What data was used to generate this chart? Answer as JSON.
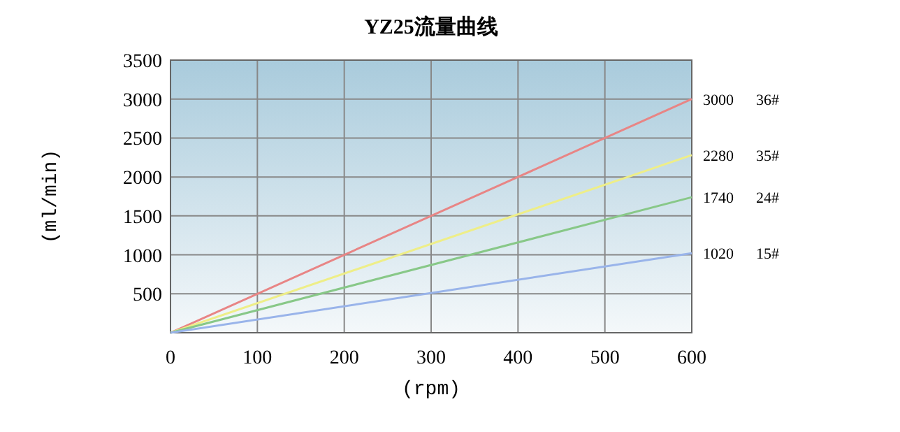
{
  "chart_data": {
    "type": "line",
    "title": "YZ25流量曲线",
    "xlabel": "(rpm)",
    "ylabel": "(ml/min)",
    "x": [
      0,
      600
    ],
    "series": [
      {
        "name": "36#",
        "color": "#e88585",
        "values": [
          0,
          3000
        ],
        "value_labels": [
          null,
          "3000"
        ]
      },
      {
        "name": "35#",
        "color": "#eeee88",
        "values": [
          0,
          2280
        ],
        "value_labels": [
          null,
          "2280"
        ]
      },
      {
        "name": "24#",
        "color": "#88c888",
        "values": [
          0,
          1740
        ],
        "value_labels": [
          null,
          "1740"
        ]
      },
      {
        "name": "15#",
        "color": "#99b4ea",
        "values": [
          0,
          1020
        ],
        "value_labels": [
          null,
          "1020"
        ]
      }
    ],
    "xlim": [
      0,
      600
    ],
    "xticks": [
      0,
      100,
      200,
      300,
      400,
      500,
      600
    ],
    "ylim": [
      0,
      3500
    ],
    "yticks": [
      {
        "value": 0,
        "label": null
      },
      500,
      1000,
      1500,
      2000,
      2500,
      3000,
      3500
    ],
    "grid": true,
    "marker": "none",
    "line_style": "solid"
  }
}
